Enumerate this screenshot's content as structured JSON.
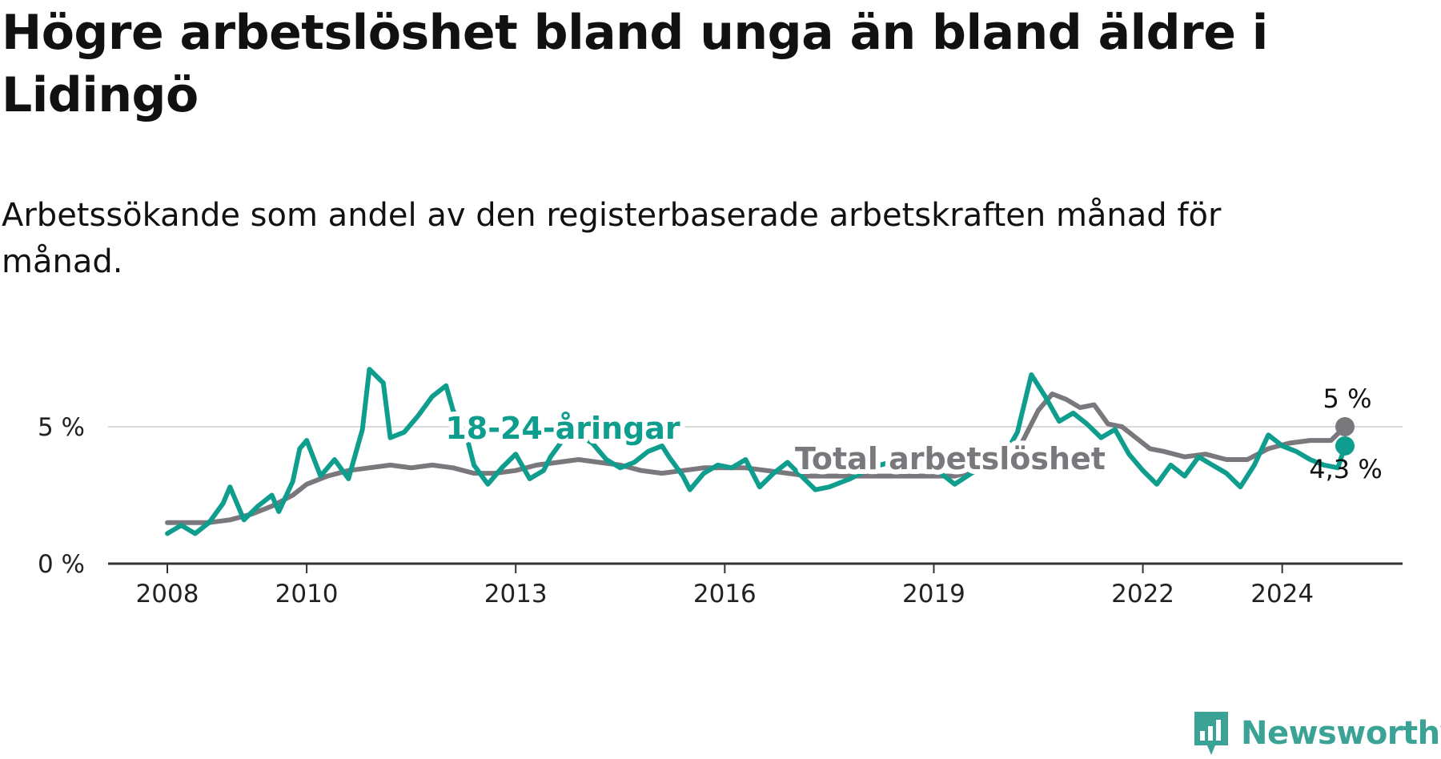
{
  "title": "Högre arbetslöshet bland unga än bland äldre i Lidingö",
  "subtitle": "Arbetssökande som andel av den registerbaserade arbetskraften månad för månad.",
  "brand": {
    "name": "Newsworthy",
    "color": "#3aa396"
  },
  "colors": {
    "total": "#7a787c",
    "youth": "#0f9e8e",
    "grid": "#d9d9d9",
    "axis": "#333333"
  },
  "chart_data": {
    "type": "line",
    "x_range": [
      2008,
      2025.6
    ],
    "ylim": [
      0,
      9
    ],
    "y_ticks": [
      {
        "value": 0,
        "label": "0 %"
      },
      {
        "value": 5,
        "label": "5 %"
      }
    ],
    "x_ticks": [
      {
        "value": 2008,
        "label": "2008"
      },
      {
        "value": 2010,
        "label": "2010"
      },
      {
        "value": 2013,
        "label": "2013"
      },
      {
        "value": 2016,
        "label": "2016"
      },
      {
        "value": 2019,
        "label": "2019"
      },
      {
        "value": 2022,
        "label": "2022"
      },
      {
        "value": 2024,
        "label": "2024"
      }
    ],
    "grid_lines": [
      5
    ],
    "series": [
      {
        "name": "Total arbetslöshet",
        "label": "Total arbetslöshet",
        "end_label": "5 %",
        "points": [
          [
            2008,
            1.5
          ],
          [
            2008.3,
            1.5
          ],
          [
            2008.6,
            1.5
          ],
          [
            2008.9,
            1.6
          ],
          [
            2009.2,
            1.8
          ],
          [
            2009.5,
            2.1
          ],
          [
            2009.8,
            2.5
          ],
          [
            2010,
            2.9
          ],
          [
            2010.3,
            3.2
          ],
          [
            2010.6,
            3.4
          ],
          [
            2010.9,
            3.5
          ],
          [
            2011.2,
            3.6
          ],
          [
            2011.5,
            3.5
          ],
          [
            2011.8,
            3.6
          ],
          [
            2012.1,
            3.5
          ],
          [
            2012.4,
            3.3
          ],
          [
            2012.7,
            3.3
          ],
          [
            2013,
            3.4
          ],
          [
            2013.3,
            3.6
          ],
          [
            2013.6,
            3.7
          ],
          [
            2013.9,
            3.8
          ],
          [
            2014.2,
            3.7
          ],
          [
            2014.5,
            3.6
          ],
          [
            2014.8,
            3.4
          ],
          [
            2015.1,
            3.3
          ],
          [
            2015.4,
            3.4
          ],
          [
            2015.7,
            3.5
          ],
          [
            2016,
            3.5
          ],
          [
            2016.3,
            3.5
          ],
          [
            2016.6,
            3.4
          ],
          [
            2016.9,
            3.3
          ],
          [
            2017.2,
            3.2
          ],
          [
            2017.5,
            3.2
          ],
          [
            2019.3,
            3.2
          ],
          [
            2019.6,
            3.4
          ],
          [
            2020,
            3.6
          ],
          [
            2020.2,
            4.1
          ],
          [
            2020.5,
            5.6
          ],
          [
            2020.7,
            6.2
          ],
          [
            2020.9,
            6.0
          ],
          [
            2021.1,
            5.7
          ],
          [
            2021.3,
            5.8
          ],
          [
            2021.5,
            5.1
          ],
          [
            2021.7,
            5.0
          ],
          [
            2021.9,
            4.6
          ],
          [
            2022.1,
            4.2
          ],
          [
            2022.3,
            4.1
          ],
          [
            2022.6,
            3.9
          ],
          [
            2022.9,
            4.0
          ],
          [
            2023.2,
            3.8
          ],
          [
            2023.5,
            3.8
          ],
          [
            2023.8,
            4.2
          ],
          [
            2024.1,
            4.4
          ],
          [
            2024.4,
            4.5
          ],
          [
            2024.7,
            4.5
          ],
          [
            2024.9,
            5.0
          ]
        ]
      },
      {
        "name": "18-24-åringar",
        "label": "18-24-åringar",
        "end_label": "4,3 %",
        "points": [
          [
            2008,
            1.1
          ],
          [
            2008.2,
            1.4
          ],
          [
            2008.4,
            1.1
          ],
          [
            2008.6,
            1.5
          ],
          [
            2008.8,
            2.2
          ],
          [
            2008.9,
            2.8
          ],
          [
            2009.1,
            1.6
          ],
          [
            2009.3,
            2.1
          ],
          [
            2009.5,
            2.5
          ],
          [
            2009.6,
            1.9
          ],
          [
            2009.8,
            3.0
          ],
          [
            2009.9,
            4.2
          ],
          [
            2010,
            4.5
          ],
          [
            2010.2,
            3.2
          ],
          [
            2010.4,
            3.8
          ],
          [
            2010.6,
            3.1
          ],
          [
            2010.8,
            4.9
          ],
          [
            2010.9,
            7.1
          ],
          [
            2011.1,
            6.6
          ],
          [
            2011.2,
            4.6
          ],
          [
            2011.4,
            4.8
          ],
          [
            2011.6,
            5.4
          ],
          [
            2011.8,
            6.1
          ],
          [
            2012,
            6.5
          ],
          [
            2012.1,
            5.6
          ],
          [
            2012.3,
            4.6
          ],
          [
            2012.4,
            3.6
          ],
          [
            2012.6,
            2.9
          ],
          [
            2012.8,
            3.5
          ],
          [
            2013,
            4.0
          ],
          [
            2013.2,
            3.1
          ],
          [
            2013.4,
            3.4
          ],
          [
            2013.5,
            3.9
          ],
          [
            2013.7,
            4.6
          ],
          [
            2013.9,
            4.7
          ],
          [
            2014.1,
            4.4
          ],
          [
            2014.3,
            3.8
          ],
          [
            2014.5,
            3.5
          ],
          [
            2014.7,
            3.7
          ],
          [
            2014.9,
            4.1
          ],
          [
            2015.1,
            4.3
          ],
          [
            2015.2,
            3.9
          ],
          [
            2015.4,
            3.2
          ],
          [
            2015.5,
            2.7
          ],
          [
            2015.7,
            3.3
          ],
          [
            2015.9,
            3.6
          ],
          [
            2016.1,
            3.5
          ],
          [
            2016.3,
            3.8
          ],
          [
            2016.5,
            2.8
          ],
          [
            2016.7,
            3.3
          ],
          [
            2016.9,
            3.7
          ],
          [
            2017.1,
            3.2
          ],
          [
            2017.3,
            2.7
          ],
          [
            2017.5,
            2.8
          ],
          [
            2017.8,
            3.1
          ],
          [
            2018.1,
            3.5
          ],
          [
            2018.5,
            3.8
          ],
          [
            2019,
            3.5
          ],
          [
            2019.3,
            2.9
          ],
          [
            2019.6,
            3.4
          ],
          [
            2020,
            3.9
          ],
          [
            2020.2,
            4.8
          ],
          [
            2020.4,
            6.9
          ],
          [
            2020.6,
            6.1
          ],
          [
            2020.8,
            5.2
          ],
          [
            2021,
            5.5
          ],
          [
            2021.2,
            5.1
          ],
          [
            2021.4,
            4.6
          ],
          [
            2021.6,
            4.9
          ],
          [
            2021.8,
            4.0
          ],
          [
            2022,
            3.4
          ],
          [
            2022.2,
            2.9
          ],
          [
            2022.4,
            3.6
          ],
          [
            2022.6,
            3.2
          ],
          [
            2022.8,
            3.9
          ],
          [
            2023,
            3.6
          ],
          [
            2023.2,
            3.3
          ],
          [
            2023.4,
            2.8
          ],
          [
            2023.6,
            3.6
          ],
          [
            2023.8,
            4.7
          ],
          [
            2024,
            4.3
          ],
          [
            2024.2,
            4.1
          ],
          [
            2024.4,
            3.8
          ],
          [
            2024.6,
            3.6
          ],
          [
            2024.8,
            3.5
          ],
          [
            2024.9,
            4.3
          ]
        ]
      }
    ]
  }
}
